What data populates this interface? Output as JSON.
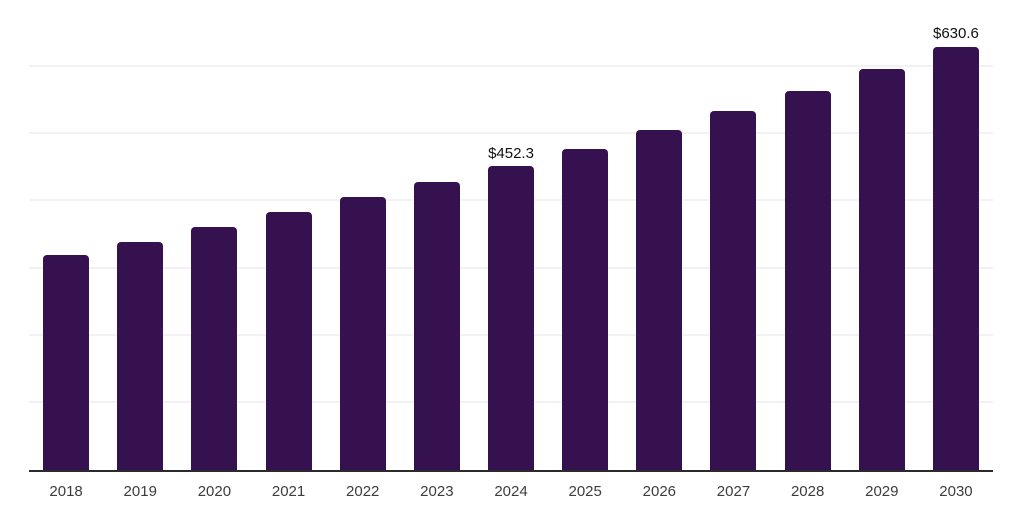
{
  "chart_data": {
    "type": "bar",
    "title": "",
    "xlabel": "",
    "ylabel": "",
    "categories": [
      "2018",
      "2019",
      "2020",
      "2021",
      "2022",
      "2023",
      "2024",
      "2025",
      "2026",
      "2027",
      "2028",
      "2029",
      "2030"
    ],
    "values": [
      320.5,
      340.3,
      361.6,
      384.8,
      406.2,
      429.3,
      452.3,
      477.8,
      506.5,
      534.7,
      564.4,
      596.6,
      630.6
    ],
    "data_labels": [
      "",
      "",
      "",
      "",
      "",
      "",
      "$452.3",
      "",
      "",
      "",
      "",
      "",
      "$630.6"
    ],
    "ylim": [
      0,
      700
    ],
    "grid": true,
    "grid_step": 100,
    "y_tick_labels_visible": false,
    "legend": false
  },
  "style": {
    "bar_color": "#351150",
    "grid_color": "#f2f2f2",
    "axis_color": "#2b2b2b",
    "year_label_color": "#3d3d3d",
    "data_label_color": "#111111",
    "background": "#ffffff"
  }
}
